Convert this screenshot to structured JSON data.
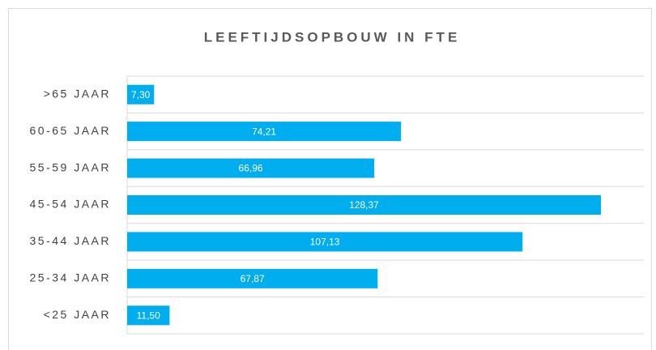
{
  "chart_data": {
    "type": "bar",
    "orientation": "horizontal",
    "title": "LEEFTIJDSOPBOUW IN FTE",
    "categories": [
      ">65 JAAR",
      "60-65 JAAR",
      "55-59 JAAR",
      "45-54 JAAR",
      "35-44 JAAR",
      "25-34 JAAR",
      "<25 JAAR"
    ],
    "values": [
      7.3,
      74.21,
      66.96,
      128.37,
      107.13,
      67.87,
      11.5
    ],
    "value_labels": [
      "7,30",
      "74,21",
      "66,96",
      "128,37",
      "107,13",
      "67,87",
      "11,50"
    ],
    "color": "#00adef",
    "xlim": [
      0,
      140
    ],
    "grid": true
  }
}
